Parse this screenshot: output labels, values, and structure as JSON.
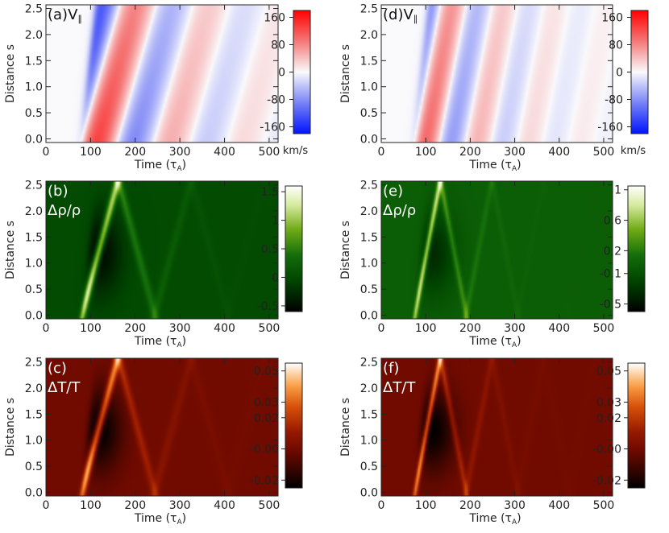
{
  "chart_data": [
    {
      "panel": "a",
      "type": "heatmap",
      "label": "(a)V",
      "label_sub": "∥",
      "label_color": "dark",
      "quantity": "velocity",
      "ylabel": "Distance s",
      "xlabel": "Time (τ",
      "xlabel_sub": "A",
      "xlabel_close": ")",
      "x": [
        0,
        100,
        200,
        300,
        400,
        500
      ],
      "y": [
        0.0,
        0.5,
        1.0,
        1.5,
        2.0,
        2.5
      ],
      "xlim": [
        0,
        520
      ],
      "ylim": [
        -0.07,
        2.57
      ],
      "colorbar": {
        "scale": "bwr",
        "ticks": [
          160,
          80,
          0,
          -80,
          -160
        ],
        "range": [
          -180,
          180
        ],
        "unit": "km/s"
      },
      "wave": {
        "t0": 80,
        "period": 82,
        "reflect_speed": 0.055,
        "decay": 0.0055,
        "peak": 160,
        "skew": 0.2,
        "amp": 1.0
      }
    },
    {
      "panel": "d",
      "type": "heatmap",
      "label": "(d)V",
      "label_sub": "∥",
      "label_color": "dark",
      "quantity": "velocity",
      "ylabel": "Distance s",
      "xlabel": "Time (τ",
      "xlabel_sub": "A",
      "xlabel_close": ")",
      "x": [
        0,
        100,
        200,
        300,
        400,
        500
      ],
      "y": [
        0.0,
        0.5,
        1.0,
        1.5,
        2.0,
        2.5
      ],
      "xlim": [
        0,
        520
      ],
      "ylim": [
        -0.07,
        2.57
      ],
      "colorbar": {
        "scale": "bwr",
        "ticks": [
          160,
          80,
          0,
          -80,
          -160
        ],
        "range": [
          -180,
          180
        ],
        "unit": "km/s"
      },
      "wave": {
        "t0": 75,
        "period": 58,
        "reflect_speed": 0.01,
        "decay": 0.0065,
        "peak": 120,
        "skew": 0.0,
        "amp": 1.0
      }
    },
    {
      "panel": "b",
      "type": "heatmap",
      "label": "(b)",
      "label2": "Δρ/ρ",
      "label_color": "light",
      "quantity": "density",
      "ylabel": "Distance s",
      "xlabel": "Time (τ",
      "xlabel_sub": "A",
      "xlabel_close": ")",
      "x": [
        0,
        100,
        200,
        300,
        400,
        500
      ],
      "y": [
        0.0,
        0.5,
        1.0,
        1.5,
        2.0,
        2.5
      ],
      "xlim": [
        0,
        520
      ],
      "ylim": [
        -0.07,
        2.57
      ],
      "colorbar": {
        "scale": "green",
        "ticks": [
          1.5,
          1.0,
          0.5,
          0.0,
          -0.5
        ],
        "range": [
          -0.6,
          1.6
        ],
        "unit": ""
      },
      "wave": {
        "t0": 80,
        "period": 82,
        "reflect_speed": 0.055,
        "decay": 0.0055,
        "peak": 1.5,
        "skew": 0.2,
        "amp": 1.0
      }
    },
    {
      "panel": "e",
      "type": "heatmap",
      "label": "(e)",
      "label2": "Δρ/ρ",
      "label_color": "light",
      "quantity": "density",
      "ylabel": "Distance s",
      "xlabel": "Time (τ",
      "xlabel_sub": "A",
      "xlabel_close": ")",
      "x": [
        0,
        100,
        200,
        300,
        400,
        500
      ],
      "y": [
        0.0,
        0.5,
        1.0,
        1.5,
        2.0,
        2.5
      ],
      "xlim": [
        0,
        520
      ],
      "ylim": [
        -0.07,
        2.57
      ],
      "colorbar": {
        "scale": "green",
        "ticks": [
          1.0,
          0.6,
          0.2,
          -0.1,
          -0.5
        ],
        "range": [
          -0.6,
          1.05
        ],
        "unit": ""
      },
      "wave": {
        "t0": 75,
        "period": 58,
        "reflect_speed": 0.01,
        "decay": 0.0065,
        "peak": 1.0,
        "skew": 0.0,
        "amp": 1.0
      }
    },
    {
      "panel": "c",
      "type": "heatmap",
      "label": "(c)",
      "label2": "ΔT/T",
      "label_color": "light",
      "quantity": "temperature",
      "ylabel": "Distance s",
      "xlabel": "Time (τ",
      "xlabel_sub": "A",
      "xlabel_close": ")",
      "x": [
        0,
        100,
        200,
        300,
        400,
        500
      ],
      "y": [
        0.0,
        0.5,
        1.0,
        1.5,
        2.0,
        2.5
      ],
      "xlim": [
        0,
        520
      ],
      "ylim": [
        -0.07,
        2.57
      ],
      "colorbar": {
        "scale": "hot",
        "ticks": [
          "0.05",
          "0.03",
          "0.02",
          "-0.00",
          "-0.02"
        ],
        "range": [
          -0.025,
          0.055
        ],
        "unit": ""
      },
      "wave": {
        "t0": 80,
        "period": 82,
        "reflect_speed": 0.055,
        "decay": 0.0055,
        "peak": 0.05,
        "skew": 0.2,
        "amp": 1.0
      }
    },
    {
      "panel": "f",
      "type": "heatmap",
      "label": "(f)",
      "label2": "ΔT/T",
      "label_color": "light",
      "quantity": "temperature",
      "ylabel": "Distance s",
      "xlabel": "Time (τ",
      "xlabel_sub": "A",
      "xlabel_close": ")",
      "x": [
        0,
        100,
        200,
        300,
        400,
        500
      ],
      "y": [
        0.0,
        0.5,
        1.0,
        1.5,
        2.0,
        2.5
      ],
      "xlim": [
        0,
        520
      ],
      "ylim": [
        -0.07,
        2.57
      ],
      "colorbar": {
        "scale": "hot",
        "ticks": [
          "0.05",
          "0.03",
          "0.02",
          "-0.00",
          "-0.02"
        ],
        "range": [
          -0.025,
          0.055
        ],
        "unit": ""
      },
      "wave": {
        "t0": 75,
        "period": 58,
        "reflect_speed": 0.01,
        "decay": 0.0065,
        "peak": 0.05,
        "skew": 0.0,
        "amp": 1.0
      }
    }
  ]
}
